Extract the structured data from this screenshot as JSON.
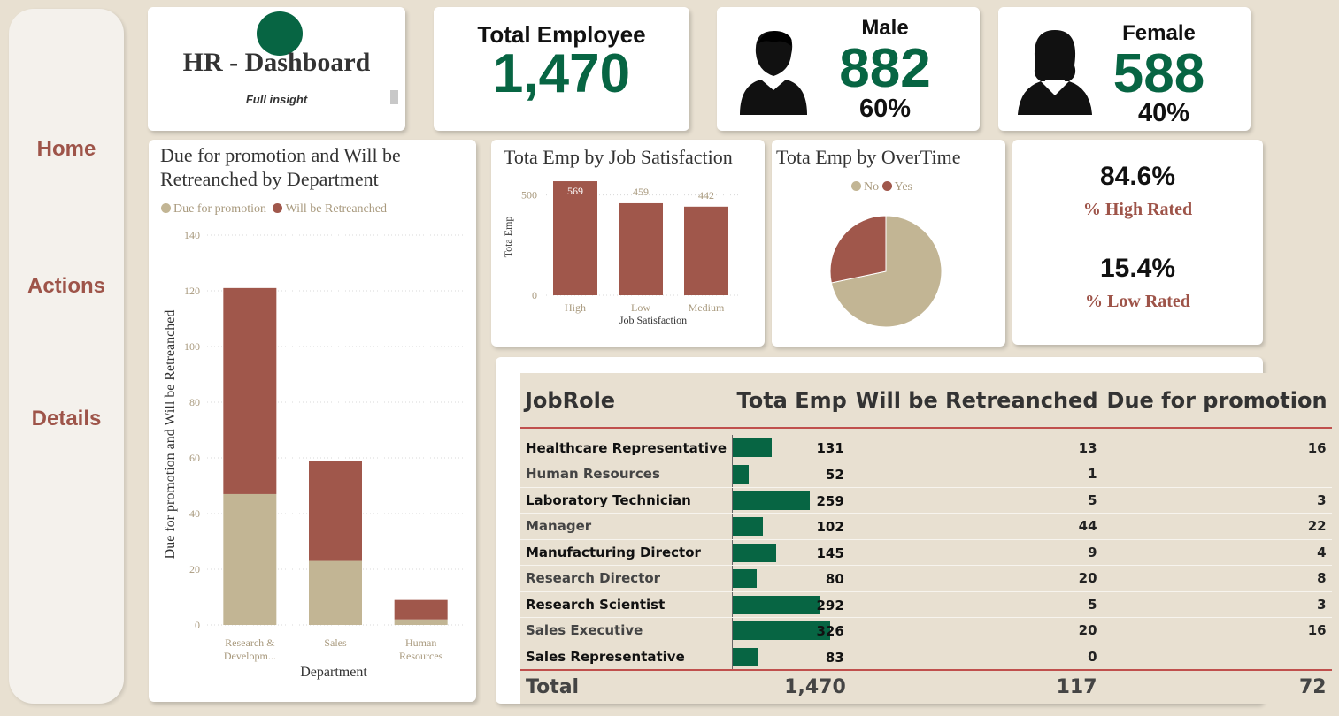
{
  "nav": {
    "home": "Home",
    "actions": "Actions",
    "details": "Details"
  },
  "header": {
    "title": "HR - Dashboard",
    "subtitle": "Full insight"
  },
  "kpis": {
    "total": {
      "label": "Total Employee",
      "value": "1,470"
    },
    "male": {
      "label": "Male",
      "value": "882",
      "pct": "60%"
    },
    "female": {
      "label": "Female",
      "value": "588",
      "pct": "40%"
    },
    "rating": {
      "high_value": "84.6%",
      "high_label": "% High Rated",
      "low_value": "15.4%",
      "low_label": "% Low Rated"
    }
  },
  "colors": {
    "accent_green": "#076543",
    "brick": "#9e5449",
    "tan": "#c2b594",
    "background": "#e8e0d1"
  },
  "chart_data": [
    {
      "type": "bar",
      "stacked": true,
      "title": "Due for promotion and Will be Retreanched by Department",
      "xlabel": "Department",
      "ylabel": "Due for promotion and Will be Retreanched",
      "categories": [
        "Research & Developm...",
        "Sales",
        "Human Resources"
      ],
      "series": [
        {
          "name": "Due for promotion",
          "values": [
            47,
            23,
            2
          ],
          "color": "#c2b594"
        },
        {
          "name": "Will be Retreanched",
          "values": [
            74,
            36,
            7
          ],
          "color": "#a0574b"
        }
      ],
      "ylim": [
        0,
        140
      ],
      "yticks": [
        0,
        20,
        40,
        60,
        80,
        100,
        120,
        140
      ],
      "legend": "top-left",
      "grid": true
    },
    {
      "type": "bar",
      "title": "Tota Emp by Job Satisfaction",
      "xlabel": "Job Satisfaction",
      "ylabel": "Tota Emp",
      "categories": [
        "High",
        "Low",
        "Medium"
      ],
      "values": [
        569,
        459,
        442
      ],
      "ylim": [
        0,
        600
      ],
      "yticks": [
        0,
        500
      ],
      "data_labels": [
        "569",
        "459",
        "442"
      ],
      "color": "#a0574b",
      "grid": true
    },
    {
      "type": "pie",
      "title": "Tota Emp by OverTime",
      "categories": [
        "No",
        "Yes"
      ],
      "values": [
        1054,
        416
      ],
      "colors": [
        "#c2b594",
        "#a0574b"
      ],
      "legend": "top"
    }
  ],
  "table": {
    "headers": [
      "JobRole",
      "Tota Emp",
      "Will be Retreanched",
      "Due for promotion"
    ],
    "rows": [
      {
        "role": "Healthcare Representative",
        "emp": 131,
        "emp_label": "131",
        "retrench": "13",
        "promo": "16"
      },
      {
        "role": "Human Resources",
        "emp": 52,
        "emp_label": "52",
        "retrench": "1",
        "promo": ""
      },
      {
        "role": "Laboratory Technician",
        "emp": 259,
        "emp_label": "259",
        "retrench": "5",
        "promo": "3"
      },
      {
        "role": "Manager",
        "emp": 102,
        "emp_label": "102",
        "retrench": "44",
        "promo": "22"
      },
      {
        "role": "Manufacturing Director",
        "emp": 145,
        "emp_label": "145",
        "retrench": "9",
        "promo": "4"
      },
      {
        "role": "Research Director",
        "emp": 80,
        "emp_label": "80",
        "retrench": "20",
        "promo": "8"
      },
      {
        "role": "Research Scientist",
        "emp": 292,
        "emp_label": "292",
        "retrench": "5",
        "promo": "3"
      },
      {
        "role": "Sales Executive",
        "emp": 326,
        "emp_label": "326",
        "retrench": "20",
        "promo": "16"
      },
      {
        "role": "Sales Representative",
        "emp": 83,
        "emp_label": "83",
        "retrench": "0",
        "promo": ""
      }
    ],
    "total": {
      "label": "Total",
      "emp": "1,470",
      "retrench": "117",
      "promo": "72"
    }
  }
}
